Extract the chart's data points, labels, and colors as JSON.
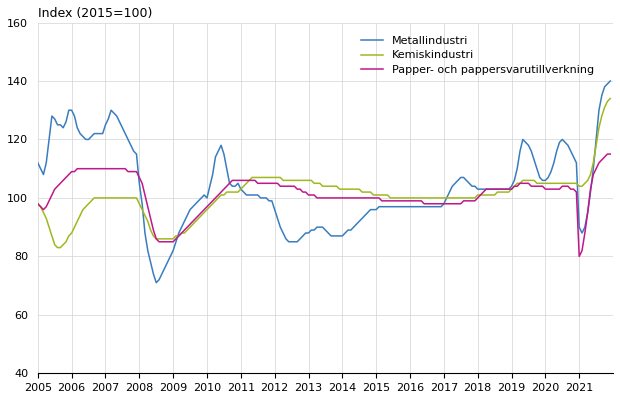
{
  "title": "Index (2015=100)",
  "ylim": [
    40,
    160
  ],
  "yticks": [
    40,
    60,
    80,
    100,
    120,
    140,
    160
  ],
  "xlim": [
    2005.0,
    2022.0
  ],
  "xticks": [
    2005,
    2006,
    2007,
    2008,
    2009,
    2010,
    2011,
    2012,
    2013,
    2014,
    2015,
    2016,
    2017,
    2018,
    2019,
    2020,
    2021
  ],
  "metallindustri_color": "#3a7dbf",
  "kemiskindustri_color": "#a0b820",
  "papper_color": "#c0178a",
  "legend_labels": [
    "Metallindustri",
    "Kemiskindustri",
    "Papper- och pappersvarutillverkning"
  ],
  "metallindustri": [
    112,
    110,
    108,
    112,
    120,
    128,
    127,
    125,
    125,
    124,
    126,
    130,
    130,
    128,
    124,
    122,
    121,
    120,
    120,
    121,
    122,
    122,
    122,
    122,
    125,
    127,
    130,
    129,
    128,
    126,
    124,
    122,
    120,
    118,
    116,
    115,
    105,
    98,
    88,
    82,
    78,
    74,
    71,
    72,
    74,
    76,
    78,
    80,
    82,
    85,
    88,
    90,
    92,
    94,
    96,
    97,
    98,
    99,
    100,
    101,
    100,
    104,
    108,
    114,
    116,
    118,
    115,
    110,
    105,
    104,
    104,
    105,
    103,
    102,
    101,
    101,
    101,
    101,
    101,
    100,
    100,
    100,
    99,
    99,
    96,
    93,
    90,
    88,
    86,
    85,
    85,
    85,
    85,
    86,
    87,
    88,
    88,
    89,
    89,
    90,
    90,
    90,
    89,
    88,
    87,
    87,
    87,
    87,
    87,
    88,
    89,
    89,
    90,
    91,
    92,
    93,
    94,
    95,
    96,
    96,
    96,
    97,
    97,
    97,
    97,
    97,
    97,
    97,
    97,
    97,
    97,
    97,
    97,
    97,
    97,
    97,
    97,
    97,
    97,
    97,
    97,
    97,
    97,
    97,
    98,
    100,
    102,
    104,
    105,
    106,
    107,
    107,
    106,
    105,
    104,
    104,
    103,
    103,
    103,
    103,
    103,
    103,
    103,
    103,
    103,
    103,
    103,
    103,
    104,
    106,
    110,
    116,
    120,
    119,
    118,
    116,
    113,
    110,
    107,
    106,
    106,
    107,
    109,
    112,
    116,
    119,
    120,
    119,
    118,
    116,
    114,
    112,
    90,
    88,
    90,
    95,
    102,
    110,
    120,
    130,
    135,
    138,
    139,
    140
  ],
  "kemiskindustri": [
    98,
    97,
    95,
    93,
    90,
    87,
    84,
    83,
    83,
    84,
    85,
    87,
    88,
    90,
    92,
    94,
    96,
    97,
    98,
    99,
    100,
    100,
    100,
    100,
    100,
    100,
    100,
    100,
    100,
    100,
    100,
    100,
    100,
    100,
    100,
    100,
    98,
    96,
    94,
    92,
    89,
    87,
    86,
    86,
    86,
    86,
    86,
    86,
    86,
    87,
    87,
    88,
    88,
    89,
    90,
    91,
    92,
    93,
    94,
    95,
    96,
    97,
    98,
    99,
    100,
    101,
    101,
    102,
    102,
    102,
    102,
    102,
    103,
    104,
    105,
    106,
    107,
    107,
    107,
    107,
    107,
    107,
    107,
    107,
    107,
    107,
    107,
    106,
    106,
    106,
    106,
    106,
    106,
    106,
    106,
    106,
    106,
    106,
    105,
    105,
    105,
    104,
    104,
    104,
    104,
    104,
    104,
    103,
    103,
    103,
    103,
    103,
    103,
    103,
    103,
    102,
    102,
    102,
    102,
    101,
    101,
    101,
    101,
    101,
    101,
    100,
    100,
    100,
    100,
    100,
    100,
    100,
    100,
    100,
    100,
    100,
    100,
    100,
    100,
    100,
    100,
    100,
    100,
    100,
    100,
    100,
    100,
    100,
    100,
    100,
    100,
    100,
    100,
    100,
    100,
    100,
    101,
    101,
    101,
    101,
    101,
    101,
    101,
    102,
    102,
    102,
    102,
    102,
    103,
    104,
    105,
    105,
    106,
    106,
    106,
    106,
    106,
    105,
    105,
    105,
    105,
    105,
    105,
    105,
    105,
    105,
    105,
    105,
    105,
    105,
    105,
    105,
    104,
    104,
    105,
    106,
    108,
    112,
    118,
    124,
    128,
    131,
    133,
    134
  ],
  "papper": [
    98,
    97,
    96,
    97,
    99,
    101,
    103,
    104,
    105,
    106,
    107,
    108,
    109,
    109,
    110,
    110,
    110,
    110,
    110,
    110,
    110,
    110,
    110,
    110,
    110,
    110,
    110,
    110,
    110,
    110,
    110,
    110,
    109,
    109,
    109,
    109,
    107,
    105,
    101,
    97,
    93,
    89,
    86,
    85,
    85,
    85,
    85,
    85,
    85,
    86,
    87,
    88,
    89,
    90,
    91,
    92,
    93,
    94,
    95,
    96,
    97,
    98,
    99,
    100,
    101,
    102,
    103,
    104,
    105,
    106,
    106,
    106,
    106,
    106,
    106,
    106,
    106,
    106,
    105,
    105,
    105,
    105,
    105,
    105,
    105,
    105,
    104,
    104,
    104,
    104,
    104,
    104,
    103,
    103,
    102,
    102,
    101,
    101,
    101,
    100,
    100,
    100,
    100,
    100,
    100,
    100,
    100,
    100,
    100,
    100,
    100,
    100,
    100,
    100,
    100,
    100,
    100,
    100,
    100,
    100,
    100,
    100,
    99,
    99,
    99,
    99,
    99,
    99,
    99,
    99,
    99,
    99,
    99,
    99,
    99,
    99,
    99,
    98,
    98,
    98,
    98,
    98,
    98,
    98,
    98,
    98,
    98,
    98,
    98,
    98,
    98,
    99,
    99,
    99,
    99,
    99,
    100,
    101,
    102,
    103,
    103,
    103,
    103,
    103,
    103,
    103,
    103,
    103,
    103,
    104,
    104,
    105,
    105,
    105,
    105,
    104,
    104,
    104,
    104,
    104,
    103,
    103,
    103,
    103,
    103,
    103,
    104,
    104,
    104,
    103,
    103,
    102,
    80,
    82,
    88,
    95,
    103,
    108,
    110,
    112,
    113,
    114,
    115,
    115
  ]
}
